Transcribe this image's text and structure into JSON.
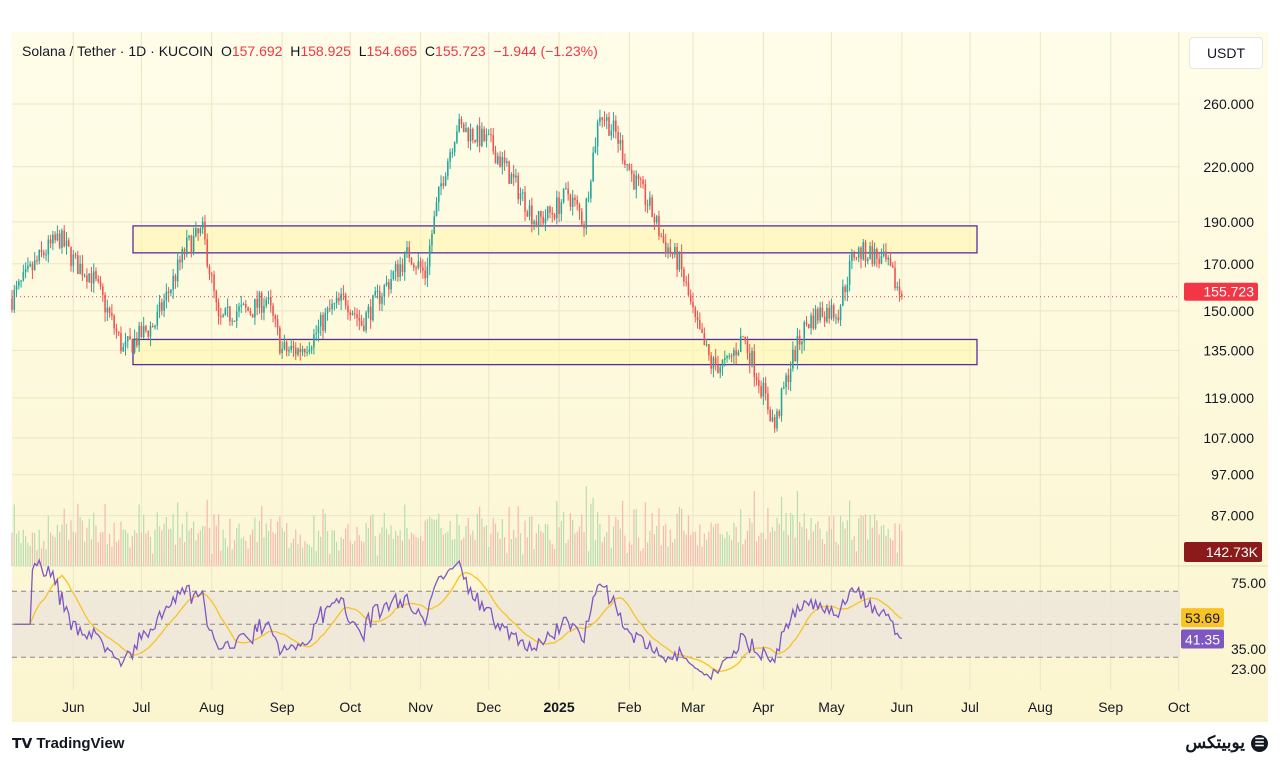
{
  "header": {
    "symbol": "Solana / Tether · 1D · KUCOIN",
    "open_label": "O",
    "open": "157.692",
    "high_label": "H",
    "high": "158.925",
    "low_label": "L",
    "low": "154.665",
    "close_label": "C",
    "close": "155.723",
    "change": "−1.944 (−1.23%)"
  },
  "unit_button": "USDT",
  "footer": {
    "brand": "TradingView",
    "watermark": "یوبیتکس"
  },
  "colors": {
    "up": "#26a69a",
    "down": "#ef5350",
    "rsi": "#7e57c2",
    "rsi_ma": "#f7c325",
    "zone": "#5b2c9c",
    "last_price": "#f23645",
    "volume_badge": "#8b1a1a"
  },
  "chart_data": {
    "type": "candlestick",
    "title": "Solana / Tether · 1D · KUCOIN",
    "ylabel": "USDT",
    "yscale": "log",
    "ylim": [
      82,
      300
    ],
    "price_ticks": [
      "260.000",
      "220.000",
      "190.000",
      "170.000",
      "150.000",
      "135.000",
      "119.000",
      "107.000",
      "97.000",
      "87.000"
    ],
    "price_tick_values": [
      260,
      220,
      190,
      170,
      150,
      135,
      119,
      107,
      97,
      87
    ],
    "last_price": 155.723,
    "last_price_label": "155.723",
    "volume_label": "142.73K",
    "x_start": "2024-05-05",
    "x_end": "2025-06-01",
    "time_ticks": [
      "Jun",
      "Jul",
      "Aug",
      "Sep",
      "Oct",
      "Nov",
      "Dec",
      "2025",
      "Feb",
      "Mar",
      "Apr",
      "May",
      "Jun",
      "Jul",
      "Aug",
      "Sep",
      "Oct"
    ],
    "time_tick_months": [
      1,
      2,
      3,
      4,
      5,
      6,
      7,
      8,
      9,
      10,
      11,
      12,
      13,
      14,
      15,
      16,
      17
    ],
    "weekly_closes": [
      155,
      165,
      175,
      182,
      170,
      165,
      150,
      135,
      140,
      145,
      160,
      178,
      185,
      145,
      150,
      150,
      155,
      135,
      135,
      140,
      150,
      155,
      145,
      155,
      165,
      175,
      165,
      210,
      245,
      240,
      235,
      220,
      205,
      190,
      195,
      205,
      190,
      255,
      240,
      215,
      200,
      180,
      170,
      145,
      130,
      130,
      140,
      125,
      110,
      130,
      145,
      150,
      150,
      175,
      175,
      170,
      155.7
    ],
    "zones": [
      {
        "name": "resistance",
        "low": 175,
        "high": 188
      },
      {
        "name": "support",
        "low": 130,
        "high": 139
      }
    ],
    "rsi": {
      "ticks": [
        "75.00",
        "35.00",
        "23.00"
      ],
      "tick_values": [
        75,
        35,
        23
      ],
      "bands": [
        70,
        50,
        30
      ],
      "rsi_value": "41.35",
      "ma_value": "53.69"
    }
  }
}
